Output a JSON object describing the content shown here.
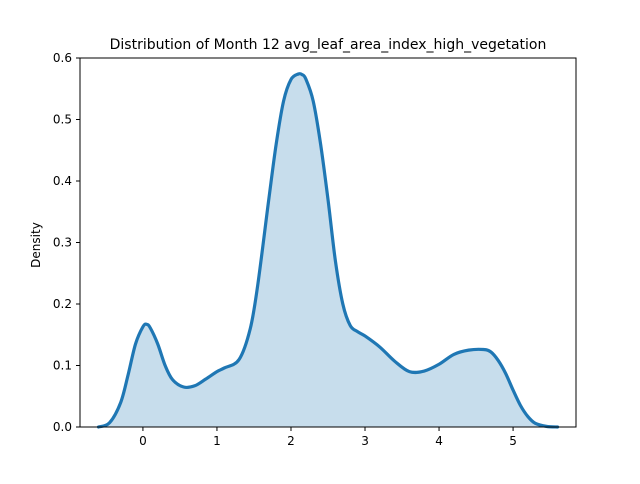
{
  "chart_data": {
    "type": "area",
    "title": "Distribution of Month 12 avg_leaf_area_index_high_vegetation",
    "xlabel": "",
    "ylabel": "Density",
    "xlim": [
      -0.85,
      5.85
    ],
    "ylim": [
      0,
      0.6
    ],
    "x_ticks": [
      0,
      1,
      2,
      3,
      4,
      5
    ],
    "y_ticks": [
      0.0,
      0.1,
      0.2,
      0.3,
      0.4,
      0.5,
      0.6
    ],
    "x_tick_labels": [
      "0",
      "1",
      "2",
      "3",
      "4",
      "5"
    ],
    "y_tick_labels": [
      "0.0",
      "0.1",
      "0.2",
      "0.3",
      "0.4",
      "0.5",
      "0.6"
    ],
    "grid": false,
    "legend": "none",
    "colors": {
      "line": "#1f77b4",
      "fill": "#1f77b4",
      "fill_opacity": 0.25,
      "axes": "#000000"
    },
    "series": [
      {
        "x": [
          -0.6,
          -0.45,
          -0.3,
          -0.2,
          -0.1,
          0.0,
          0.05,
          0.1,
          0.2,
          0.3,
          0.4,
          0.55,
          0.7,
          0.85,
          1.0,
          1.1,
          1.3,
          1.45,
          1.55,
          1.7,
          1.8,
          1.9,
          2.0,
          2.1,
          2.15,
          2.2,
          2.3,
          2.4,
          2.5,
          2.6,
          2.7,
          2.8,
          2.9,
          3.0,
          3.2,
          3.4,
          3.6,
          3.8,
          4.0,
          4.2,
          4.4,
          4.6,
          4.7,
          4.8,
          4.9,
          5.0,
          5.1,
          5.2,
          5.3,
          5.45,
          5.6
        ],
        "y": [
          0.0,
          0.007,
          0.04,
          0.085,
          0.135,
          0.163,
          0.167,
          0.161,
          0.135,
          0.1,
          0.077,
          0.065,
          0.067,
          0.078,
          0.09,
          0.096,
          0.11,
          0.16,
          0.23,
          0.37,
          0.46,
          0.53,
          0.565,
          0.574,
          0.573,
          0.566,
          0.53,
          0.46,
          0.37,
          0.27,
          0.2,
          0.165,
          0.155,
          0.148,
          0.13,
          0.107,
          0.09,
          0.091,
          0.102,
          0.118,
          0.125,
          0.126,
          0.122,
          0.108,
          0.087,
          0.06,
          0.035,
          0.017,
          0.006,
          0.001,
          0.0
        ]
      }
    ]
  }
}
